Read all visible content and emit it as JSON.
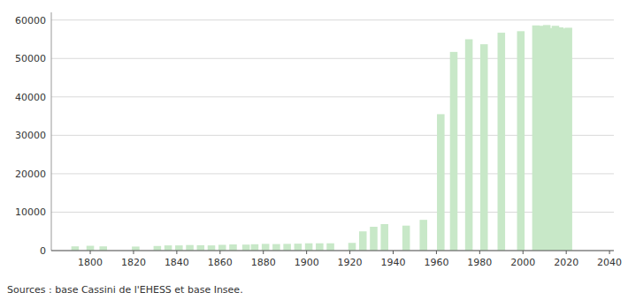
{
  "chart_data": {
    "type": "bar",
    "x": [
      1793,
      1800,
      1806,
      1821,
      1831,
      1836,
      1841,
      1846,
      1851,
      1856,
      1861,
      1866,
      1872,
      1876,
      1881,
      1886,
      1891,
      1896,
      1901,
      1906,
      1911,
      1921,
      1926,
      1931,
      1936,
      1946,
      1954,
      1962,
      1968,
      1975,
      1982,
      1990,
      1999,
      2006,
      2009,
      2011,
      2013,
      2015,
      2017,
      2019,
      2021
    ],
    "values": [
      1100,
      1250,
      1100,
      1050,
      1200,
      1350,
      1350,
      1450,
      1400,
      1350,
      1500,
      1600,
      1550,
      1650,
      1750,
      1700,
      1750,
      1800,
      1900,
      1900,
      1900,
      2000,
      5000,
      6200,
      6900,
      6500,
      8000,
      35500,
      51700,
      55000,
      53700,
      56700,
      57100,
      58600,
      58500,
      58700,
      57900,
      58500,
      58100,
      57800,
      58000
    ],
    "color": "#c8e8c8",
    "xlim": [
      1782,
      2042
    ],
    "xticks": [
      1800,
      1820,
      1840,
      1860,
      1880,
      1900,
      1920,
      1940,
      1960,
      1980,
      2000,
      2020,
      2040
    ],
    "ylim": [
      0,
      62000
    ],
    "yticks": [
      0,
      10000,
      20000,
      30000,
      40000,
      50000,
      60000
    ],
    "grid": true,
    "annotations": [
      "Sources : base Cassini de l'EHESS et base Insee."
    ]
  }
}
